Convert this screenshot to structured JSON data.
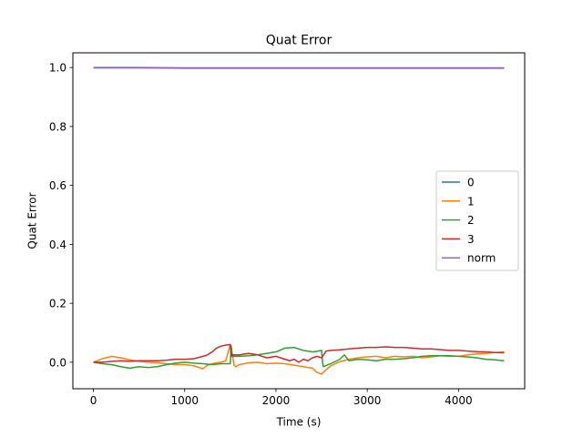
{
  "chart_data": {
    "type": "line",
    "title": "Quat Error",
    "xlabel": "Time (s)",
    "ylabel": "Quat Error",
    "xlim": [
      -225,
      4725
    ],
    "ylim": [
      -0.09,
      1.05
    ],
    "xticks": [
      0,
      1000,
      2000,
      3000,
      4000
    ],
    "yticks": [
      0.0,
      0.2,
      0.4,
      0.6,
      0.8,
      1.0
    ],
    "xtick_labels": [
      "0",
      "1000",
      "2000",
      "3000",
      "4000"
    ],
    "ytick_labels": [
      "0.0",
      "0.2",
      "0.4",
      "0.6",
      "0.8",
      "1.0"
    ],
    "grid": false,
    "legend_position": "center-right",
    "series": [
      {
        "name": "0",
        "color": "#1f77b4",
        "x": [
          0,
          500,
          1000,
          1500,
          2000,
          2500,
          3000,
          3500,
          4000,
          4500
        ],
        "y": [
          0.999,
          0.999,
          0.998,
          0.998,
          0.998,
          0.998,
          0.998,
          0.998,
          0.998,
          0.998
        ]
      },
      {
        "name": "1",
        "color": "#ff7f0e",
        "x": [
          0,
          100,
          200,
          300,
          400,
          500,
          600,
          700,
          800,
          900,
          1000,
          1100,
          1200,
          1250,
          1300,
          1350,
          1400,
          1450,
          1500,
          1520,
          1540,
          1560,
          1600,
          1700,
          1800,
          1900,
          2000,
          2100,
          2200,
          2300,
          2400,
          2450,
          2500,
          2550,
          2600,
          2650,
          2700,
          2800,
          2900,
          3000,
          3100,
          3200,
          3300,
          3400,
          3500,
          3600,
          3700,
          3800,
          3900,
          4000,
          4100,
          4200,
          4300,
          4400,
          4500
        ],
        "y": [
          0.0,
          0.012,
          0.02,
          0.015,
          0.008,
          0.003,
          0.0,
          -0.002,
          -0.005,
          -0.008,
          -0.008,
          -0.012,
          -0.022,
          -0.01,
          -0.005,
          -0.002,
          0.0,
          0.005,
          0.06,
          0.03,
          -0.01,
          -0.015,
          -0.008,
          -0.002,
          0.0,
          -0.005,
          -0.003,
          -0.005,
          -0.01,
          -0.015,
          -0.02,
          -0.035,
          -0.04,
          -0.025,
          -0.012,
          -0.005,
          0.002,
          0.01,
          0.015,
          0.018,
          0.02,
          0.015,
          0.02,
          0.018,
          0.02,
          0.015,
          0.018,
          0.022,
          0.02,
          0.02,
          0.025,
          0.028,
          0.03,
          0.033,
          0.035
        ]
      },
      {
        "name": "2",
        "color": "#2ca02c",
        "x": [
          0,
          100,
          200,
          300,
          400,
          500,
          600,
          700,
          800,
          900,
          1000,
          1100,
          1200,
          1300,
          1400,
          1500,
          1510,
          1520,
          1600,
          1700,
          1800,
          1900,
          2000,
          2100,
          2200,
          2300,
          2400,
          2450,
          2500,
          2510,
          2520,
          2600,
          2700,
          2750,
          2800,
          2900,
          3000,
          3100,
          3200,
          3300,
          3400,
          3500,
          3600,
          3700,
          3800,
          3900,
          4000,
          4100,
          4200,
          4300,
          4400,
          4500
        ],
        "y": [
          0.0,
          -0.005,
          -0.008,
          -0.015,
          -0.02,
          -0.015,
          -0.018,
          -0.015,
          -0.008,
          -0.003,
          0.0,
          -0.003,
          -0.005,
          -0.008,
          -0.005,
          -0.005,
          0.055,
          0.02,
          0.02,
          0.022,
          0.025,
          0.03,
          0.035,
          0.048,
          0.05,
          0.04,
          0.035,
          0.037,
          0.04,
          0.0,
          -0.015,
          -0.005,
          0.01,
          0.025,
          0.005,
          0.01,
          0.008,
          0.005,
          0.01,
          0.01,
          0.012,
          0.015,
          0.02,
          0.022,
          0.022,
          0.022,
          0.02,
          0.018,
          0.015,
          0.01,
          0.008,
          0.005
        ]
      },
      {
        "name": "3",
        "color": "#d62728",
        "x": [
          0,
          100,
          200,
          300,
          400,
          500,
          600,
          700,
          800,
          900,
          1000,
          1100,
          1200,
          1250,
          1300,
          1350,
          1400,
          1450,
          1500,
          1510,
          1520,
          1600,
          1700,
          1800,
          1900,
          2000,
          2100,
          2150,
          2200,
          2250,
          2300,
          2350,
          2400,
          2450,
          2500,
          2550,
          2600,
          2700,
          2800,
          2900,
          3000,
          3100,
          3200,
          3300,
          3400,
          3500,
          3600,
          3700,
          3800,
          3900,
          4000,
          4100,
          4200,
          4300,
          4400,
          4500
        ],
        "y": [
          0.0,
          0.0,
          0.003,
          0.005,
          0.003,
          0.005,
          0.005,
          0.005,
          0.007,
          0.01,
          0.01,
          0.012,
          0.02,
          0.025,
          0.035,
          0.048,
          0.055,
          0.058,
          0.06,
          0.02,
          0.025,
          0.025,
          0.03,
          0.025,
          0.015,
          0.02,
          0.01,
          0.005,
          0.01,
          0.0,
          0.01,
          0.005,
          0.015,
          0.02,
          0.015,
          0.038,
          0.04,
          0.042,
          0.045,
          0.048,
          0.05,
          0.05,
          0.052,
          0.05,
          0.05,
          0.048,
          0.045,
          0.045,
          0.043,
          0.04,
          0.04,
          0.038,
          0.036,
          0.035,
          0.033,
          0.032
        ]
      },
      {
        "name": "norm",
        "color": "#9467bd",
        "x": [
          0,
          500,
          1000,
          1500,
          2000,
          2500,
          3000,
          3500,
          4000,
          4500
        ],
        "y": [
          1.0,
          1.0,
          0.999,
          0.999,
          0.999,
          0.999,
          0.999,
          0.999,
          0.999,
          0.999
        ]
      }
    ]
  }
}
